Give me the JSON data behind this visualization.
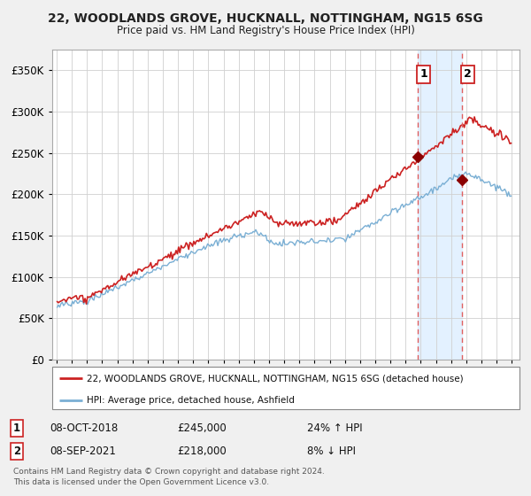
{
  "title": "22, WOODLANDS GROVE, HUCKNALL, NOTTINGHAM, NG15 6SG",
  "subtitle": "Price paid vs. HM Land Registry's House Price Index (HPI)",
  "legend_line1": "22, WOODLANDS GROVE, HUCKNALL, NOTTINGHAM, NG15 6SG (detached house)",
  "legend_line2": "HPI: Average price, detached house, Ashfield",
  "transaction1_date": "08-OCT-2018",
  "transaction1_price": 245000,
  "transaction1_pct": "24% ↑ HPI",
  "transaction2_date": "08-SEP-2021",
  "transaction2_price": 218000,
  "transaction2_pct": "8% ↓ HPI",
  "footnote": "Contains HM Land Registry data © Crown copyright and database right 2024.\nThis data is licensed under the Open Government Licence v3.0.",
  "hpi_color": "#7aafd4",
  "property_color": "#cc2222",
  "marker_color": "#8b0000",
  "shade_color": "#ddeeff",
  "vline_color": "#e06060",
  "grid_color": "#d0d0d0",
  "bg_color": "#f0f0f0",
  "plot_bg": "#ffffff",
  "ylim": [
    0,
    375000
  ],
  "xlim_start": 1994.7,
  "xlim_end": 2025.5,
  "t1_x": 2018.79,
  "t1_y": 245000,
  "t2_x": 2021.71,
  "t2_y": 218000,
  "noise_scale_hpi": 1800,
  "noise_scale_prop": 2500
}
